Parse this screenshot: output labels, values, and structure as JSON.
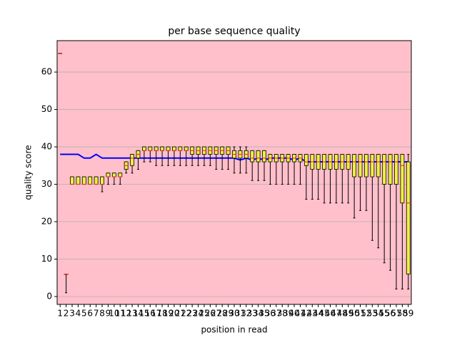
{
  "chart_data": {
    "type": "boxplot",
    "title": "per base sequence quality",
    "x_label": "position in read",
    "y_label": "quality score",
    "x": [
      1,
      2,
      3,
      4,
      5,
      6,
      7,
      8,
      9,
      10,
      11,
      12,
      13,
      14,
      15,
      16,
      17,
      18,
      19,
      20,
      21,
      22,
      23,
      24,
      25,
      26,
      27,
      28,
      29,
      30,
      31,
      32,
      33,
      34,
      35,
      36,
      37,
      38,
      39,
      40,
      41,
      42,
      43,
      44,
      45,
      46,
      47,
      48,
      49,
      50,
      51,
      52,
      53,
      54,
      55,
      56,
      57,
      58,
      59
    ],
    "xlim": [
      0.5,
      59.5
    ],
    "ylim": [
      -2.1,
      68.4
    ],
    "yticks": [
      0,
      10,
      20,
      30,
      40,
      50,
      60
    ],
    "grid": true,
    "background": "#ffc0cb",
    "box_color": "#eeee44",
    "median_color": "#ff3030",
    "mean_color": "#0000ff",
    "low": [
      65,
      1,
      30,
      30,
      30,
      30,
      30,
      28,
      30,
      30,
      30,
      33,
      33,
      34,
      36,
      36,
      35,
      35,
      35,
      35,
      35,
      35,
      35,
      35,
      35,
      35,
      34,
      34,
      34,
      33,
      33,
      33,
      31,
      31,
      31,
      30,
      30,
      30,
      30,
      30,
      30,
      26,
      26,
      26,
      25,
      25,
      25,
      25,
      25,
      21,
      23,
      23,
      15,
      13,
      9,
      7,
      2,
      2,
      2
    ],
    "q1": [
      65,
      6,
      30,
      30,
      30,
      30,
      30,
      30,
      32,
      32,
      32,
      34,
      35,
      37,
      39,
      39,
      39,
      39,
      39,
      39,
      39,
      39,
      38,
      38,
      38,
      38,
      38,
      38,
      38,
      37,
      37,
      37,
      36,
      36,
      36,
      36,
      36,
      36,
      36,
      36,
      36,
      35,
      34,
      34,
      34,
      34,
      34,
      34,
      34,
      32,
      32,
      32,
      32,
      32,
      30,
      30,
      30,
      25,
      6
    ],
    "median": [
      65,
      6,
      30,
      30,
      30,
      30,
      30,
      30,
      32,
      32,
      32,
      35,
      37,
      38,
      39,
      39,
      39,
      39,
      39,
      39,
      39,
      39,
      39,
      39,
      39,
      39,
      39,
      39,
      39,
      38,
      38,
      38,
      37,
      37,
      37,
      37,
      37,
      37,
      37,
      37,
      37,
      36,
      36,
      36,
      36,
      36,
      36,
      36,
      36,
      36,
      36,
      36,
      36,
      36,
      36,
      36,
      36,
      35,
      25
    ],
    "q3": [
      65,
      6,
      32,
      32,
      32,
      32,
      32,
      32,
      33,
      33,
      33,
      36,
      38,
      39,
      40,
      40,
      40,
      40,
      40,
      40,
      40,
      40,
      40,
      40,
      40,
      40,
      40,
      40,
      40,
      39,
      39,
      39,
      39,
      39,
      39,
      38,
      38,
      38,
      38,
      38,
      38,
      38,
      38,
      38,
      38,
      38,
      38,
      38,
      38,
      38,
      38,
      38,
      38,
      38,
      38,
      38,
      38,
      38,
      36
    ],
    "high": [
      65,
      6,
      32,
      32,
      32,
      32,
      32,
      32,
      33,
      33,
      33,
      36,
      38,
      39,
      40,
      40,
      40,
      40,
      40,
      40,
      40,
      40,
      40,
      40,
      40,
      40,
      40,
      40,
      40,
      40,
      40,
      40,
      39,
      39,
      39,
      38,
      38,
      38,
      38,
      38,
      38,
      38,
      38,
      38,
      38,
      38,
      38,
      38,
      38,
      38,
      38,
      38,
      38,
      38,
      38,
      38,
      38,
      38,
      38
    ],
    "mean": [
      38,
      38,
      38,
      38,
      37,
      37,
      38,
      37,
      37,
      37,
      37,
      37,
      37,
      37,
      37,
      37,
      37,
      37,
      37,
      37,
      37,
      37,
      37,
      37,
      37,
      37,
      37,
      37,
      37,
      37,
      36.5,
      37,
      36.5,
      37,
      36.5,
      37,
      37,
      37,
      37,
      36.5,
      37,
      36,
      36,
      36,
      36,
      36,
      36,
      36,
      36,
      36,
      36,
      36,
      36,
      36,
      36,
      36,
      36,
      36,
      36
    ]
  }
}
